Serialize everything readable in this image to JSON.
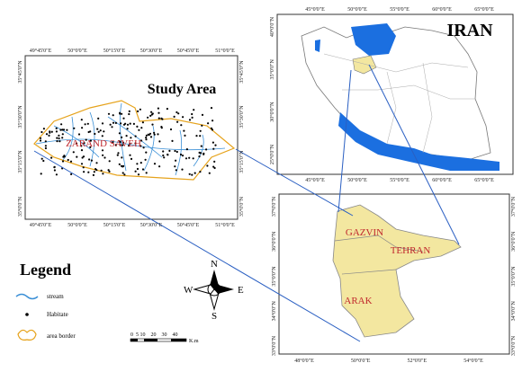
{
  "iran_map": {
    "title": "IRAN",
    "top_labels": [
      "45°0'0\"E",
      "50°0'0\"E",
      "55°0'0\"E",
      "60°0'0\"E",
      "65°0'0\"E"
    ],
    "bottom_labels": [
      "45°0'0\"E",
      "50°0'0\"E",
      "55°0'0\"E",
      "60°0'0\"E",
      "65°0'0\"E"
    ],
    "left_labels": [
      "40°0'0\"N",
      "35°0'0\"N",
      "30°0'0\"N",
      "25°0'0\"N"
    ]
  },
  "study_area_map": {
    "title": "Study Area",
    "area_label": "ZARAND SAVEH",
    "top_labels": [
      "49°45'0\"E",
      "50°0'0\"E",
      "50°15'0\"E",
      "50°30'0\"E",
      "50°45'0\"E",
      "51°0'0\"E"
    ],
    "bottom_labels": [
      "49°45'0\"E",
      "50°0'0\"E",
      "50°15'0\"E",
      "50°30'0\"E",
      "50°45'0\"E",
      "51°0'0\"E"
    ],
    "left_labels": [
      "35°45'0\"N",
      "35°30'0\"N",
      "35°15'0\"N",
      "35°0'0\"N"
    ],
    "right_labels": [
      "35°45'0\"N",
      "35°30'0\"N",
      "35°15'0\"N",
      "35°0'0\"N"
    ]
  },
  "province_map": {
    "province_labels": [
      "GAZVIN",
      "TEHRAN",
      "ARAK"
    ],
    "bottom_labels": [
      "48°0'0\"E",
      "50°0'0\"E",
      "52°0'0\"E",
      "54°0'0\"E"
    ],
    "left_labels": [
      "37°0'0\"N",
      "36°0'0\"N",
      "35°0'0\"N",
      "34°0'0\"N",
      "33°0'0\"N"
    ],
    "right_labels": [
      "37°0'0\"N",
      "36°0'0\"N",
      "35°0'0\"N",
      "34°0'0\"N",
      "33°0'0\"N"
    ]
  },
  "legend": {
    "title": "Legend",
    "items": [
      "stream",
      "Habitate",
      "area border"
    ]
  },
  "compass": {
    "north": "N",
    "south": "S",
    "east": "E",
    "west": "W"
  },
  "scale_bar": {
    "ticks": "0  5 10    20    30    40",
    "unit": "K.m"
  }
}
